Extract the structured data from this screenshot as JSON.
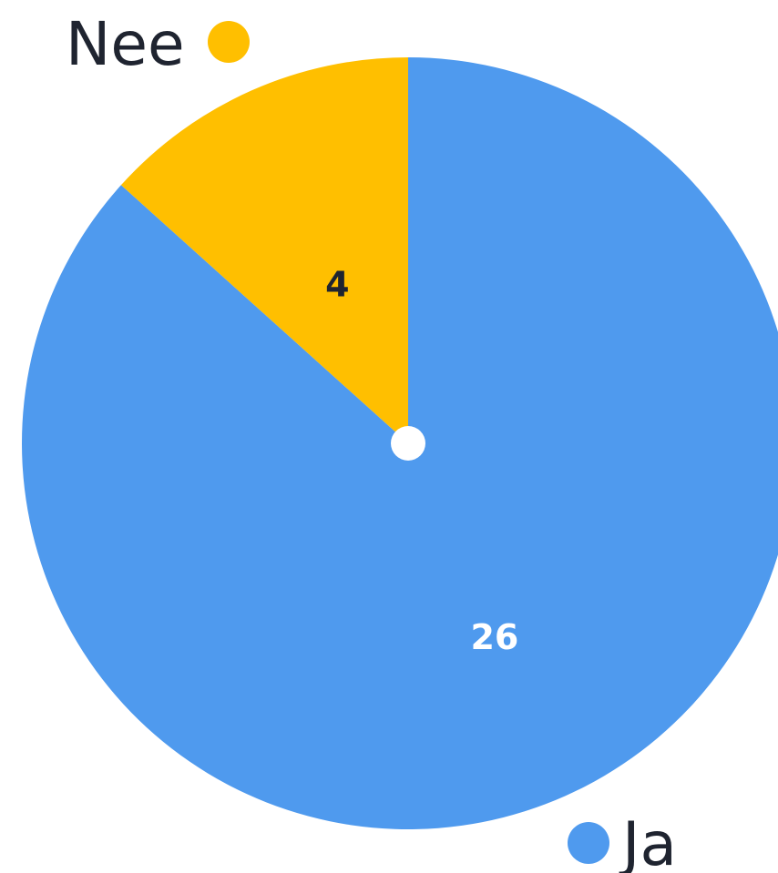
{
  "chart_data": {
    "type": "pie",
    "title": "",
    "slices": [
      {
        "label": "Ja",
        "value": 26,
        "color": "#4f9aee",
        "value_label_color": "#ffffff"
      },
      {
        "label": "Nee",
        "value": 4,
        "color": "#ffbf00",
        "value_label_color": "#1f2430"
      }
    ],
    "start_angle_deg": 0,
    "direction": "clockwise",
    "center_marker": true
  }
}
